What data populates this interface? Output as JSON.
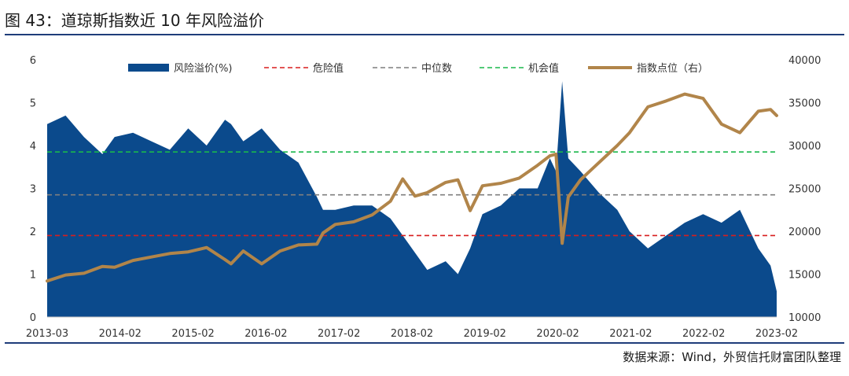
{
  "figure": {
    "title": "图 43：道琼斯指数近 10 年风险溢价",
    "source": "数据来源：Wind，外贸信托财富团队整理"
  },
  "colors": {
    "area": "#0b4a8c",
    "index_line": "#b1854a",
    "danger": "#d81e1e",
    "median": "#7f7f7f",
    "opportunity": "#1ab84c",
    "rule": "#1f3d7a"
  },
  "chart_data": {
    "type": "area",
    "legend_position": "top",
    "grid": false,
    "x_tick_labels": [
      "2013-03",
      "2014-02",
      "2015-02",
      "2016-02",
      "2017-02",
      "2018-02",
      "2019-02",
      "2020-02",
      "2021-02",
      "2022-02",
      "2023-02"
    ],
    "y_left": {
      "range": [
        0,
        6
      ],
      "ticks": [
        "0",
        "1",
        "2",
        "3",
        "4",
        "5",
        "6"
      ]
    },
    "y_right": {
      "range": [
        10000,
        40000
      ],
      "ticks": [
        "10000",
        "15000",
        "20000",
        "25000",
        "30000",
        "35000",
        "40000"
      ]
    },
    "legend": [
      "风险溢价(%)",
      "危险值",
      "中位数",
      "机会值",
      "指数点位（右）"
    ],
    "series": [
      {
        "name": "风险溢价(%)",
        "axis": "left",
        "style": "area",
        "x": [
          "2013-03",
          "2013-06",
          "2013-09",
          "2013-12",
          "2014-02",
          "2014-05",
          "2014-08",
          "2014-11",
          "2015-02",
          "2015-05",
          "2015-08",
          "2015-09",
          "2015-11",
          "2016-02",
          "2016-05",
          "2016-08",
          "2016-11",
          "2016-12",
          "2017-02",
          "2017-05",
          "2017-08",
          "2017-11",
          "2018-01",
          "2018-03",
          "2018-05",
          "2018-08",
          "2018-10",
          "2018-12",
          "2019-02",
          "2019-05",
          "2019-08",
          "2019-11",
          "2020-01",
          "2020-02",
          "2020-03",
          "2020-04",
          "2020-06",
          "2020-09",
          "2020-12",
          "2021-02",
          "2021-05",
          "2021-08",
          "2021-11",
          "2022-02",
          "2022-05",
          "2022-08",
          "2022-11",
          "2023-01",
          "2023-02"
        ],
        "values": [
          4.5,
          4.7,
          4.2,
          3.8,
          4.2,
          4.3,
          4.1,
          3.9,
          4.4,
          4.0,
          4.6,
          4.5,
          4.1,
          4.4,
          3.9,
          3.6,
          2.8,
          2.5,
          2.5,
          2.6,
          2.6,
          2.3,
          1.9,
          1.5,
          1.1,
          1.3,
          1.0,
          1.6,
          2.4,
          2.6,
          3.0,
          3.0,
          3.7,
          3.4,
          5.5,
          3.7,
          3.4,
          2.9,
          2.5,
          2.0,
          1.6,
          1.9,
          2.2,
          2.4,
          2.2,
          2.5,
          1.6,
          1.2,
          0.6
        ]
      },
      {
        "name": "指数点位（右）",
        "axis": "right",
        "style": "line",
        "x": [
          "2013-03",
          "2013-06",
          "2013-09",
          "2013-12",
          "2014-02",
          "2014-05",
          "2014-08",
          "2014-11",
          "2015-02",
          "2015-05",
          "2015-08",
          "2015-09",
          "2015-11",
          "2016-02",
          "2016-05",
          "2016-08",
          "2016-11",
          "2016-12",
          "2017-02",
          "2017-05",
          "2017-08",
          "2017-11",
          "2018-01",
          "2018-03",
          "2018-05",
          "2018-08",
          "2018-10",
          "2018-12",
          "2019-02",
          "2019-05",
          "2019-08",
          "2019-11",
          "2020-01",
          "2020-02",
          "2020-03",
          "2020-04",
          "2020-06",
          "2020-09",
          "2020-12",
          "2021-02",
          "2021-05",
          "2021-08",
          "2021-11",
          "2022-02",
          "2022-05",
          "2022-08",
          "2022-11",
          "2023-01",
          "2023-02"
        ],
        "values": [
          14200,
          14900,
          15100,
          15900,
          15800,
          16600,
          17000,
          17400,
          17600,
          18100,
          16700,
          16200,
          17700,
          16200,
          17700,
          18400,
          18500,
          19800,
          20800,
          21100,
          21900,
          23500,
          26100,
          24100,
          24500,
          25700,
          26000,
          22400,
          25300,
          25600,
          26200,
          27700,
          28800,
          29000,
          18600,
          24000,
          26000,
          28000,
          30000,
          31500,
          34500,
          35200,
          36000,
          35500,
          32500,
          31500,
          34000,
          34200,
          33500
        ]
      },
      {
        "name": "危险值",
        "axis": "left",
        "style": "dashed",
        "value": 1.9
      },
      {
        "name": "中位数",
        "axis": "left",
        "style": "dashed",
        "value": 2.85
      },
      {
        "name": "机会值",
        "axis": "left",
        "style": "dashed",
        "value": 3.85
      }
    ]
  }
}
